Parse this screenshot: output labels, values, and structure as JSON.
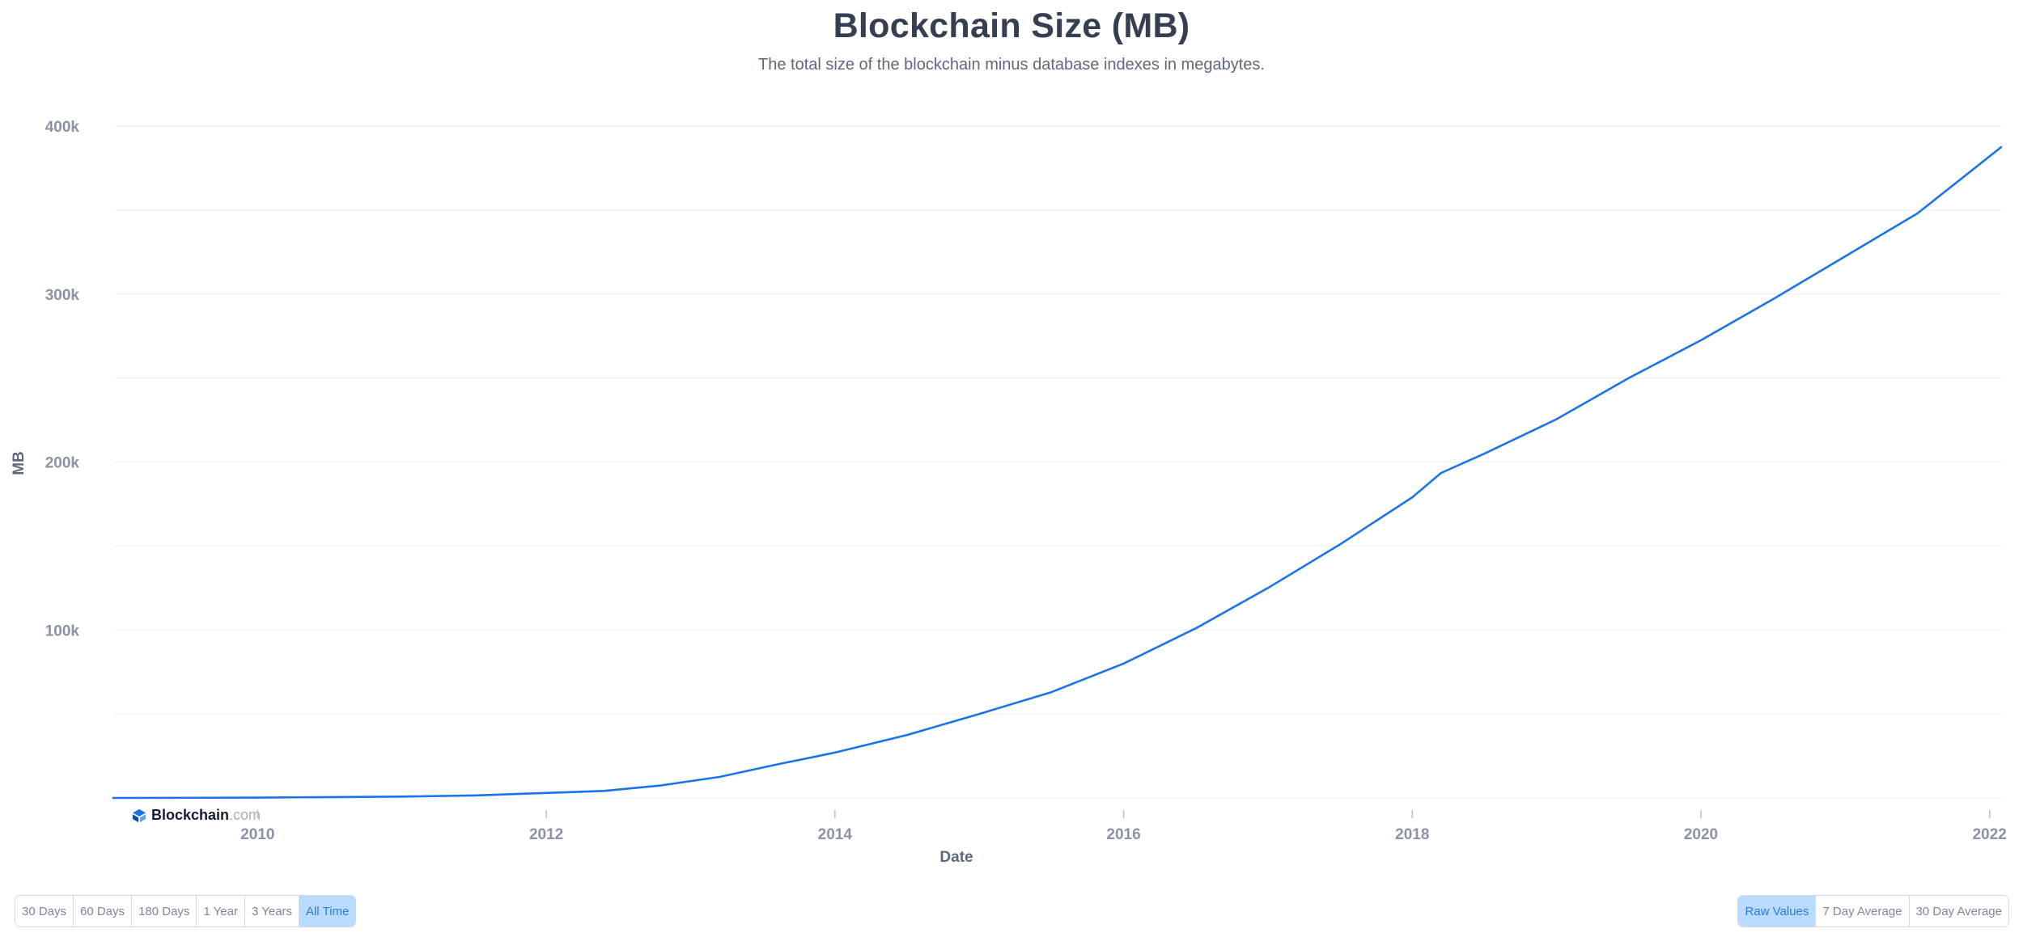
{
  "colors": {
    "line": "#1a73e8",
    "grid": "#eef0f3",
    "axis_text": "#8a93a6",
    "axis_title": "#5d687c",
    "title": "#353f52"
  },
  "brand": {
    "name": "Blockchain",
    "tld": ".com",
    "icon": "blockchain-logo-icon"
  },
  "ranges": {
    "items": [
      "30 Days",
      "60 Days",
      "180 Days",
      "1 Year",
      "3 Years",
      "All Time"
    ],
    "active": "All Time"
  },
  "modes": {
    "items": [
      "Raw Values",
      "7 Day Average",
      "30 Day Average"
    ],
    "active": "Raw Values"
  },
  "chart_data": {
    "type": "line",
    "title": "Blockchain Size (MB)",
    "subtitle": "The total size of the blockchain minus database indexes in megabytes.",
    "xlabel": "Date",
    "ylabel": "MB",
    "xlim": [
      2009.0,
      2022.08
    ],
    "ylim": [
      0,
      400000
    ],
    "x_ticks": [
      2010,
      2012,
      2014,
      2016,
      2018,
      2020,
      2022
    ],
    "y_ticks": [
      100000,
      200000,
      300000,
      400000
    ],
    "y_tick_labels": [
      "100k",
      "200k",
      "300k",
      "400k"
    ],
    "y_gridlines": [
      0,
      50000,
      100000,
      150000,
      200000,
      250000,
      300000,
      350000,
      400000
    ],
    "grid": true,
    "legend": "none",
    "series": [
      {
        "name": "Blockchain Size (MB)",
        "x": [
          2009.0,
          2010.0,
          2011.0,
          2011.5,
          2012.0,
          2012.4,
          2012.8,
          2013.2,
          2013.6,
          2014.0,
          2014.5,
          2015.0,
          2015.5,
          2016.0,
          2016.5,
          2017.0,
          2017.5,
          2018.0,
          2018.2,
          2018.5,
          2019.0,
          2019.5,
          2020.0,
          2020.5,
          2021.0,
          2021.5,
          2022.08
        ],
        "values": [
          0,
          200,
          800,
          1500,
          3000,
          4200,
          7500,
          12500,
          20000,
          27000,
          37500,
          50000,
          63000,
          80000,
          101000,
          125000,
          151000,
          179000,
          193500,
          205000,
          225500,
          250000,
          272500,
          297000,
          322500,
          348000,
          387500
        ]
      }
    ]
  }
}
